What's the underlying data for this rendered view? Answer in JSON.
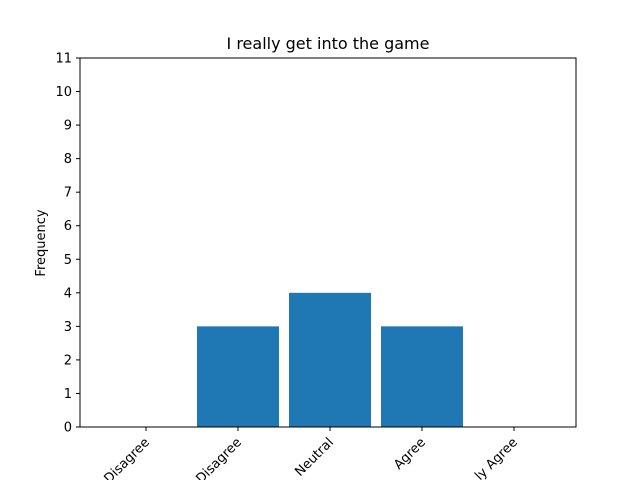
{
  "chart_data": {
    "type": "bar",
    "title": "I really get into the game",
    "xlabel": "",
    "ylabel": "Frequency",
    "categories": [
      "Strongly Disagree",
      "Disagree",
      "Neutral",
      "Agree",
      "Strongly Agree"
    ],
    "visible_category_labels": [
      "Disagree",
      "Disagree",
      "Neutral",
      "Agree",
      "ly Agree"
    ],
    "values": [
      0,
      3,
      4,
      3,
      0
    ],
    "ylim": [
      0,
      11
    ],
    "yticks": [
      0,
      1,
      2,
      3,
      4,
      5,
      6,
      7,
      8,
      9,
      10,
      11
    ],
    "grid": false,
    "bar_color": "#1f77b4"
  }
}
